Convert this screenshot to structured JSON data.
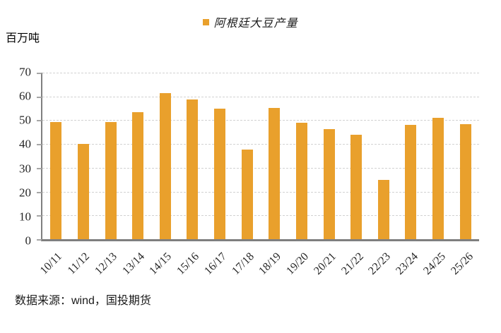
{
  "legend": {
    "label": "阿根廷大豆产量"
  },
  "y_axis_title": "百万吨",
  "source_text": "数据来源：wind，国投期货",
  "colors": {
    "bar": "#E9A02C",
    "gridline": "#D2D2D2",
    "axis": "#7F7F7F",
    "tick": "#A6A6A6",
    "text": "#262626"
  },
  "chart_data": {
    "type": "bar",
    "title": "阿根廷大豆产量",
    "xlabel": "",
    "ylabel": "百万吨",
    "categories": [
      "10/11",
      "11/12",
      "12/13",
      "13/14",
      "14/15",
      "15/16",
      "16/17",
      "17/18",
      "18/19",
      "19/20",
      "20/21",
      "21/22",
      "22/23",
      "23/24",
      "24/25",
      "25/26"
    ],
    "values": [
      49.2,
      40.1,
      49.3,
      53.5,
      61.4,
      58.8,
      55.0,
      37.8,
      55.3,
      48.8,
      46.2,
      43.9,
      25.0,
      48.2,
      50.9,
      48.5
    ],
    "ylim": [
      0,
      70
    ],
    "ytick_step": 10,
    "grid": "horizontal-dashed",
    "legend_position": "top-center",
    "bar_color": "#E9A02C"
  }
}
